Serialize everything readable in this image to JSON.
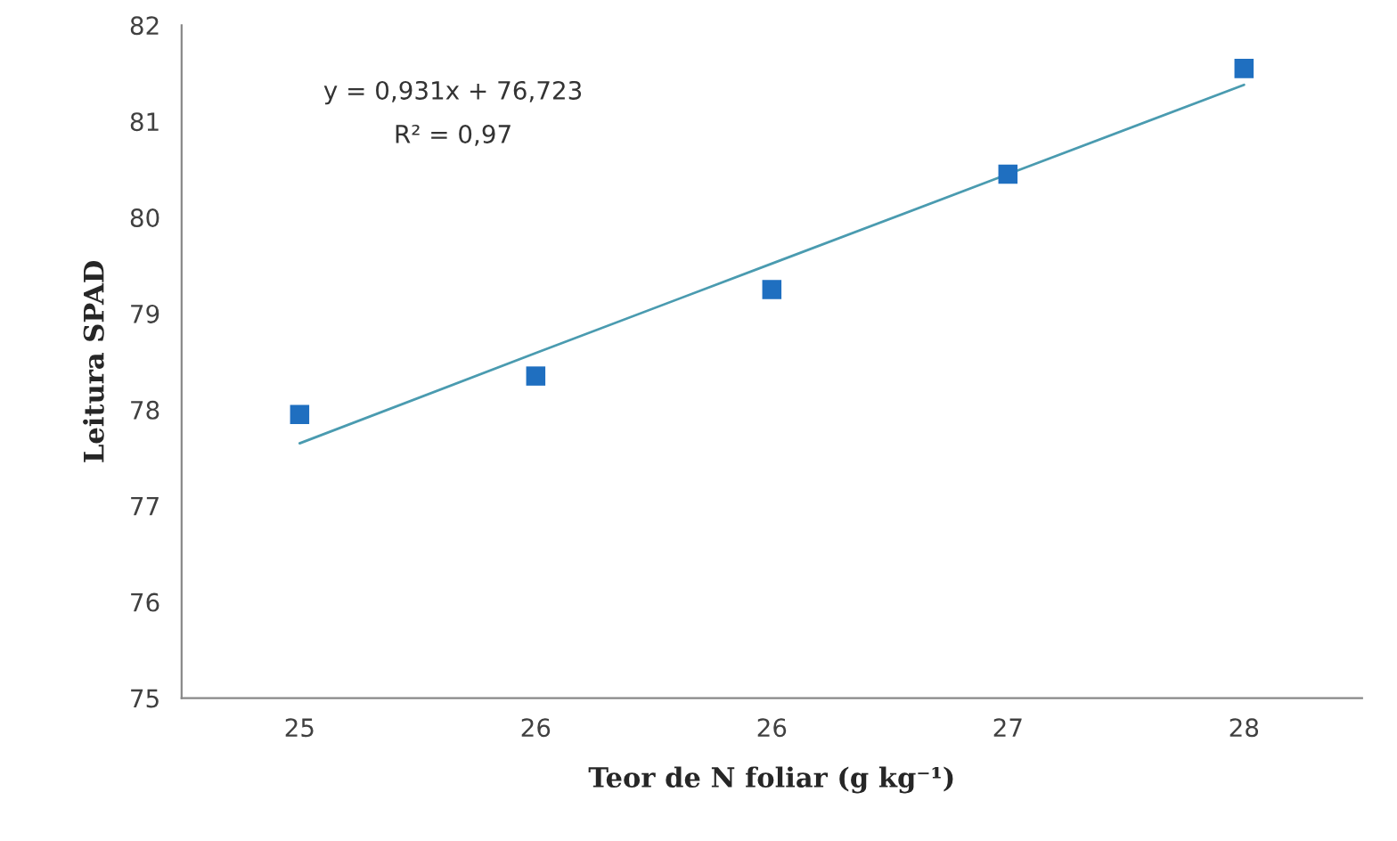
{
  "chart_data": {
    "type": "scatter",
    "xlabel": "Teor de N foliar (g kg⁻¹)",
    "ylabel": "Leitura SPAD",
    "categories": [
      "25",
      "26",
      "26",
      "27",
      "28"
    ],
    "series": [
      {
        "color": "#1f6fc0",
        "marker": "square",
        "values": [
          77.95,
          78.35,
          79.25,
          80.45,
          81.55
        ]
      },
      {
        "type": "line",
        "color": "#4a9bb0",
        "marker": "none",
        "line_style": "solid",
        "values": [
          77.65,
          78.59,
          79.52,
          80.45,
          81.38
        ]
      }
    ],
    "annotations": [
      "y = 0,931x + 76,723",
      "R² = 0,97"
    ],
    "ylim": [
      75,
      82
    ],
    "yticks": [
      75,
      76,
      77,
      78,
      79,
      80,
      81,
      82
    ],
    "grid": false,
    "legend": false
  }
}
